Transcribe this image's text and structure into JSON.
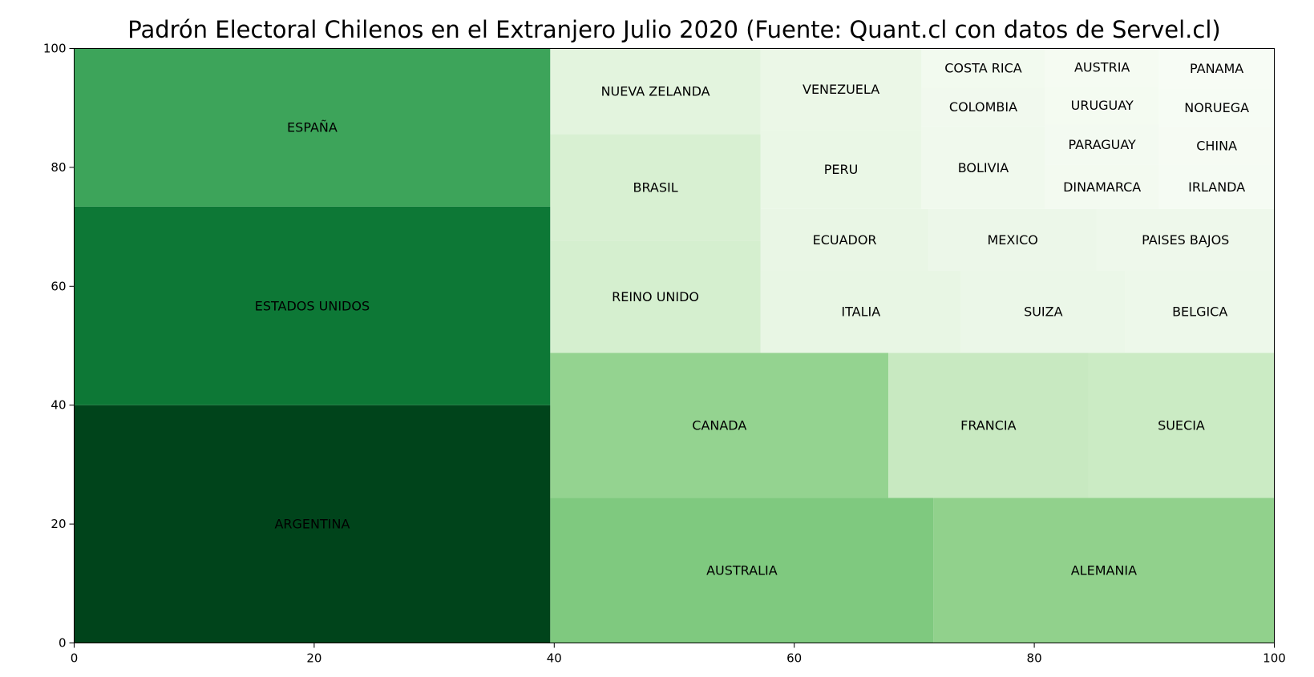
{
  "chart_data": {
    "type": "treemap",
    "title": "Padrón Electoral Chilenos en el Extranjero Julio 2020  (Fuente: Quant.cl con datos de Servel.cl)",
    "xlim": [
      0,
      100
    ],
    "ylim": [
      0,
      100
    ],
    "xticks": [
      "0",
      "20",
      "40",
      "60",
      "80",
      "100"
    ],
    "yticks": [
      "0",
      "20",
      "40",
      "60",
      "80",
      "100"
    ],
    "grid": false,
    "cells": [
      {
        "label": "ARGENTINA",
        "x0": 0,
        "y0": 0,
        "x1": 39.67,
        "y1": 40.0,
        "color": "#00441b"
      },
      {
        "label": "ESTADOS UNIDOS",
        "x0": 0,
        "y0": 40.0,
        "x1": 39.67,
        "y1": 73.4,
        "color": "#0d7836"
      },
      {
        "label": "ESPAÑA",
        "x0": 0,
        "y0": 73.4,
        "x1": 39.67,
        "y1": 100,
        "color": "#3da45a"
      },
      {
        "label": "AUSTRALIA",
        "x0": 39.67,
        "y0": 0,
        "x1": 71.6,
        "y1": 24.4,
        "color": "#7fc97f"
      },
      {
        "label": "ALEMANIA",
        "x0": 71.6,
        "y0": 0,
        "x1": 100,
        "y1": 24.4,
        "color": "#91d18c"
      },
      {
        "label": "CANADA",
        "x0": 39.67,
        "y0": 24.4,
        "x1": 67.85,
        "y1": 48.8,
        "color": "#94d390"
      },
      {
        "label": "FRANCIA",
        "x0": 67.85,
        "y0": 24.4,
        "x1": 84.5,
        "y1": 48.8,
        "color": "#c8e9c1"
      },
      {
        "label": "SUECIA",
        "x0": 84.5,
        "y0": 24.4,
        "x1": 100,
        "y1": 48.8,
        "color": "#cbebc4"
      },
      {
        "label": "REINO UNIDO",
        "x0": 39.67,
        "y0": 48.8,
        "x1": 57.2,
        "y1": 67.7,
        "color": "#d5efcf"
      },
      {
        "label": "BRASIL",
        "x0": 39.67,
        "y0": 67.7,
        "x1": 57.2,
        "y1": 85.6,
        "color": "#d8f0d2"
      },
      {
        "label": "NUEVA ZELANDA",
        "x0": 39.67,
        "y0": 85.6,
        "x1": 57.2,
        "y1": 100,
        "color": "#e3f4de"
      },
      {
        "label": "ITALIA",
        "x0": 57.2,
        "y0": 48.8,
        "x1": 73.9,
        "y1": 62.6,
        "color": "#e8f6e4"
      },
      {
        "label": "SUIZA",
        "x0": 73.9,
        "y0": 48.8,
        "x1": 87.6,
        "y1": 62.6,
        "color": "#ebf7e8"
      },
      {
        "label": "BELGICA",
        "x0": 87.6,
        "y0": 48.8,
        "x1": 100,
        "y1": 62.6,
        "color": "#edf8ea"
      },
      {
        "label": "ECUADOR",
        "x0": 57.2,
        "y0": 62.6,
        "x1": 71.2,
        "y1": 73.0,
        "color": "#e9f6e5"
      },
      {
        "label": "MEXICO",
        "x0": 71.2,
        "y0": 62.6,
        "x1": 85.2,
        "y1": 73.0,
        "color": "#ecf7e9"
      },
      {
        "label": "PAISES BAJOS",
        "x0": 85.2,
        "y0": 62.6,
        "x1": 100,
        "y1": 73.0,
        "color": "#eef8eb"
      },
      {
        "label": "PERU",
        "x0": 57.2,
        "y0": 73.0,
        "x1": 70.6,
        "y1": 86.3,
        "color": "#eaf7e6"
      },
      {
        "label": "VENEZUELA",
        "x0": 57.2,
        "y0": 86.3,
        "x1": 70.6,
        "y1": 100,
        "color": "#ebf7e7"
      },
      {
        "label": "BOLIVIA",
        "x0": 70.6,
        "y0": 73.0,
        "x1": 80.9,
        "y1": 86.9,
        "color": "#f0f9ed"
      },
      {
        "label": "COLOMBIA",
        "x0": 70.6,
        "y0": 86.9,
        "x1": 80.9,
        "y1": 93.4,
        "color": "#f1f9ee"
      },
      {
        "label": "COSTA RICA",
        "x0": 80.9,
        "y0": 93.4,
        "x1": 80.9,
        "y1": 100,
        "color": "#f2faef"
      },
      {
        "label": "DINAMARCA",
        "x0": 80.9,
        "y0": 73.0,
        "x1": 90.4,
        "y1": 80.4,
        "color": "#f3faf0"
      },
      {
        "label": "PARAGUAY",
        "x0": 80.9,
        "y0": 80.4,
        "x1": 90.4,
        "y1": 87.2,
        "color": "#f3faf1"
      },
      {
        "label": "URUGUAY",
        "x0": 80.9,
        "y0": 87.2,
        "x1": 90.4,
        "y1": 93.6,
        "color": "#f4fbf1"
      },
      {
        "label": "AUSTRIA",
        "x0": 80.9,
        "y0": 93.6,
        "x1": 90.4,
        "y1": 100,
        "color": "#f5fbf2"
      },
      {
        "label": "IRLANDA",
        "x0": 90.4,
        "y0": 73.0,
        "x1": 100,
        "y1": 80.4,
        "color": "#f5fbf3"
      },
      {
        "label": "CHINA",
        "x0": 90.4,
        "y0": 80.4,
        "x1": 100,
        "y1": 86.9,
        "color": "#f6fbf3"
      },
      {
        "label": "NORUEGA",
        "x0": 90.4,
        "y0": 86.9,
        "x1": 100,
        "y1": 93.2,
        "color": "#f6fcf4"
      },
      {
        "label": "PANAMA",
        "x0": 90.4,
        "y0": 93.2,
        "x1": 100,
        "y1": 100,
        "color": "#f7fcf5"
      }
    ]
  }
}
